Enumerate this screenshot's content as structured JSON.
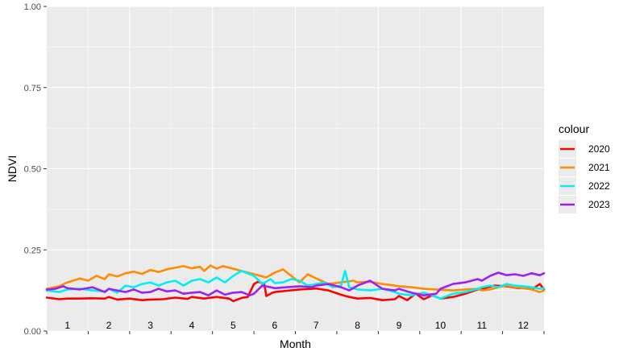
{
  "chart_data": {
    "type": "line",
    "xlabel": "Month",
    "ylabel": "NDVI",
    "xlim": [
      0.5,
      12.5
    ],
    "ylim": [
      0,
      1
    ],
    "y_ticks": [
      0.0,
      0.25,
      0.5,
      0.75,
      1.0
    ],
    "y_tick_labels": [
      "0.00",
      "0.25",
      "0.50",
      "0.75",
      "1.00"
    ],
    "month_labels": [
      "1",
      "2",
      "3",
      "4",
      "5",
      "6",
      "7",
      "8",
      "9",
      "10",
      "11",
      "12"
    ],
    "legend_title": "colour",
    "legend_position": "right",
    "grid": true,
    "background": "#ebebeb",
    "series": [
      {
        "name": "2020",
        "color": "#ff0000",
        "x": [
          0.5,
          0.8,
          1.0,
          1.3,
          1.6,
          1.9,
          2.0,
          2.2,
          2.5,
          2.8,
          3.0,
          3.3,
          3.6,
          3.9,
          4.0,
          4.3,
          4.6,
          4.9,
          5.0,
          5.2,
          5.35,
          5.5,
          5.6,
          5.75,
          5.8,
          5.95,
          6.0,
          6.3,
          6.6,
          6.9,
          7.0,
          7.3,
          7.6,
          7.8,
          8.0,
          8.3,
          8.6,
          8.9,
          9.0,
          9.2,
          9.4,
          9.6,
          9.8,
          10.0,
          10.3,
          10.6,
          10.9,
          11.0,
          11.3,
          11.6,
          11.9,
          12.0,
          12.2,
          12.4,
          12.5
        ],
        "y": [
          0.103,
          0.098,
          0.1,
          0.1,
          0.101,
          0.1,
          0.105,
          0.097,
          0.1,
          0.095,
          0.097,
          0.098,
          0.103,
          0.099,
          0.105,
          0.1,
          0.105,
          0.1,
          0.092,
          0.102,
          0.105,
          0.145,
          0.152,
          0.145,
          0.108,
          0.118,
          0.12,
          0.124,
          0.128,
          0.13,
          0.131,
          0.125,
          0.112,
          0.105,
          0.1,
          0.102,
          0.095,
          0.098,
          0.108,
          0.095,
          0.115,
          0.098,
          0.11,
          0.1,
          0.105,
          0.115,
          0.128,
          0.13,
          0.14,
          0.138,
          0.132,
          0.135,
          0.128,
          0.145,
          0.128
        ]
      },
      {
        "name": "2021",
        "color": "#ff8c00",
        "x": [
          0.5,
          0.8,
          1.0,
          1.3,
          1.5,
          1.7,
          1.9,
          2.0,
          2.2,
          2.4,
          2.6,
          2.8,
          3.0,
          3.2,
          3.4,
          3.6,
          3.8,
          4.0,
          4.2,
          4.3,
          4.45,
          4.6,
          4.75,
          4.9,
          5.0,
          5.3,
          5.6,
          5.8,
          6.0,
          6.2,
          6.4,
          6.6,
          6.8,
          7.0,
          7.3,
          7.6,
          7.9,
          8.0,
          8.3,
          8.6,
          8.9,
          9.0,
          9.3,
          9.6,
          9.9,
          10.0,
          10.3,
          10.6,
          10.9,
          11.0,
          11.2,
          11.4,
          11.6,
          11.8,
          12.0,
          12.2,
          12.4,
          12.5
        ],
        "y": [
          0.13,
          0.138,
          0.15,
          0.162,
          0.155,
          0.17,
          0.16,
          0.175,
          0.168,
          0.178,
          0.183,
          0.176,
          0.188,
          0.182,
          0.19,
          0.195,
          0.2,
          0.193,
          0.198,
          0.185,
          0.202,
          0.192,
          0.2,
          0.195,
          0.192,
          0.182,
          0.172,
          0.165,
          0.18,
          0.19,
          0.17,
          0.15,
          0.175,
          0.162,
          0.145,
          0.15,
          0.155,
          0.15,
          0.152,
          0.145,
          0.14,
          0.138,
          0.135,
          0.13,
          0.128,
          0.127,
          0.125,
          0.128,
          0.13,
          0.125,
          0.128,
          0.135,
          0.14,
          0.135,
          0.132,
          0.128,
          0.12,
          0.125
        ]
      },
      {
        "name": "2022",
        "color": "#00f0f0",
        "x": [
          0.5,
          0.8,
          1.0,
          1.3,
          1.6,
          1.9,
          2.0,
          2.2,
          2.4,
          2.6,
          2.8,
          3.0,
          3.2,
          3.4,
          3.6,
          3.8,
          4.0,
          4.2,
          4.4,
          4.6,
          4.8,
          5.0,
          5.2,
          5.5,
          5.7,
          5.9,
          6.0,
          6.2,
          6.4,
          6.6,
          6.8,
          7.0,
          7.2,
          7.4,
          7.6,
          7.7,
          7.8,
          8.0,
          8.3,
          8.6,
          8.9,
          9.0,
          9.3,
          9.6,
          9.9,
          10.0,
          10.3,
          10.6,
          10.9,
          11.0,
          11.2,
          11.4,
          11.6,
          11.8,
          12.0,
          12.2,
          12.4,
          12.5
        ],
        "y": [
          0.125,
          0.12,
          0.128,
          0.13,
          0.125,
          0.122,
          0.13,
          0.118,
          0.14,
          0.135,
          0.145,
          0.15,
          0.14,
          0.15,
          0.155,
          0.14,
          0.155,
          0.16,
          0.15,
          0.165,
          0.15,
          0.17,
          0.185,
          0.17,
          0.145,
          0.16,
          0.148,
          0.15,
          0.16,
          0.155,
          0.14,
          0.145,
          0.15,
          0.135,
          0.14,
          0.185,
          0.135,
          0.128,
          0.125,
          0.13,
          0.12,
          0.115,
          0.11,
          0.118,
          0.105,
          0.1,
          0.115,
          0.12,
          0.13,
          0.135,
          0.14,
          0.135,
          0.145,
          0.14,
          0.138,
          0.135,
          0.13,
          0.132
        ]
      },
      {
        "name": "2023",
        "color": "#a020f0",
        "x": [
          0.5,
          0.7,
          0.9,
          1.0,
          1.3,
          1.6,
          1.9,
          2.0,
          2.2,
          2.4,
          2.6,
          2.8,
          3.0,
          3.2,
          3.4,
          3.6,
          3.8,
          4.0,
          4.2,
          4.4,
          4.6,
          4.8,
          5.0,
          5.2,
          5.4,
          5.5,
          5.7,
          5.9,
          6.0,
          6.3,
          6.6,
          6.9,
          7.0,
          7.3,
          7.6,
          7.8,
          8.0,
          8.3,
          8.6,
          8.9,
          9.0,
          9.3,
          9.6,
          9.9,
          10.0,
          10.3,
          10.6,
          10.9,
          11.0,
          11.2,
          11.4,
          11.6,
          11.8,
          12.0,
          12.2,
          12.4,
          12.5
        ],
        "y": [
          0.128,
          0.13,
          0.138,
          0.132,
          0.128,
          0.135,
          0.12,
          0.13,
          0.125,
          0.12,
          0.128,
          0.118,
          0.12,
          0.13,
          0.122,
          0.125,
          0.115,
          0.118,
          0.12,
          0.11,
          0.125,
          0.112,
          0.118,
          0.12,
          0.11,
          0.115,
          0.14,
          0.135,
          0.132,
          0.135,
          0.138,
          0.135,
          0.14,
          0.145,
          0.135,
          0.125,
          0.14,
          0.155,
          0.13,
          0.125,
          0.13,
          0.118,
          0.11,
          0.115,
          0.13,
          0.145,
          0.15,
          0.16,
          0.155,
          0.17,
          0.18,
          0.172,
          0.175,
          0.17,
          0.178,
          0.172,
          0.178
        ]
      }
    ]
  }
}
